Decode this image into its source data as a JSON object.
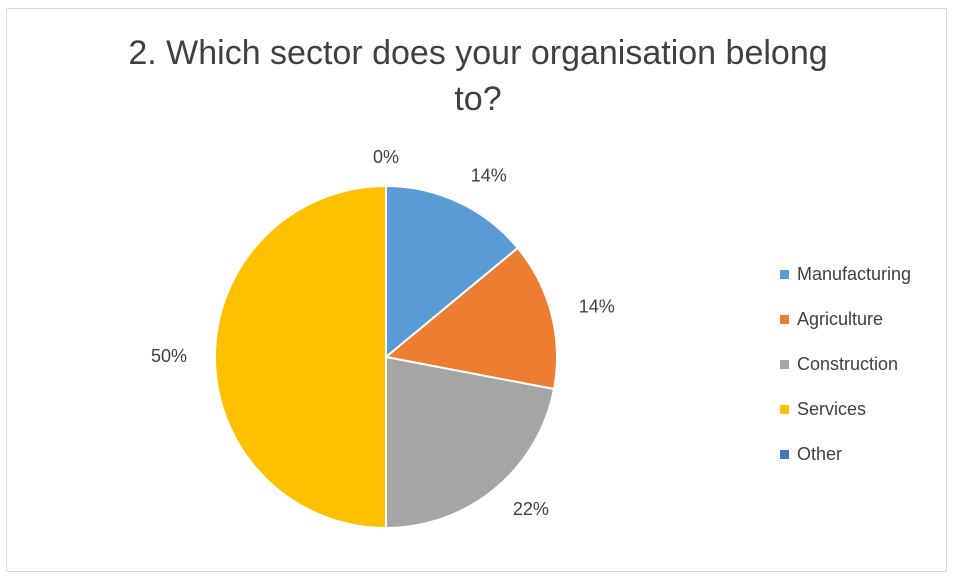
{
  "chart_data": {
    "type": "pie",
    "title": "2. Which sector does your organisation belong to?",
    "title_lines": [
      "2. Which sector does your organisation belong",
      "to?"
    ],
    "legend_position": "right",
    "slices": [
      {
        "name": "Manufacturing",
        "value": 14,
        "label": "14%",
        "color": "#5b9bd5"
      },
      {
        "name": "Agriculture",
        "value": 14,
        "label": "14%",
        "color": "#ed7d31"
      },
      {
        "name": "Construction",
        "value": 22,
        "label": "22%",
        "color": "#a5a5a5"
      },
      {
        "name": "Services",
        "value": 50,
        "label": "50%",
        "color": "#ffc000"
      },
      {
        "name": "Other",
        "value": 0,
        "label": "0%",
        "color": "#4472c4"
      }
    ]
  }
}
